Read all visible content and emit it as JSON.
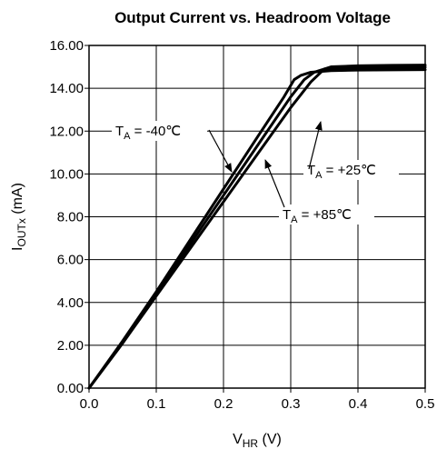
{
  "chart_data": {
    "type": "line",
    "title": "Output Current vs. Headroom Voltage",
    "xlabel": "V",
    "xlabel_sub": "HR",
    "xlabel_unit": "(V)",
    "ylabel": "I",
    "ylabel_sub": "OUTx",
    "ylabel_unit": "(mA)",
    "xlim": [
      0.0,
      0.5
    ],
    "ylim": [
      0.0,
      16.0
    ],
    "xticks": [
      0.0,
      0.1,
      0.2,
      0.3,
      0.4,
      0.5
    ],
    "xtick_labels": [
      "0.0",
      "0.1",
      "0.2",
      "0.3",
      "0.4",
      "0.5"
    ],
    "yticks": [
      0,
      2,
      4,
      6,
      8,
      10,
      12,
      14,
      16
    ],
    "ytick_labels": [
      "0.00",
      "2.00",
      "4.00",
      "6.00",
      "8.00",
      "10.00",
      "12.00",
      "14.00",
      "16.00"
    ],
    "grid": true,
    "legend": "none",
    "series": [
      {
        "name": "T_A = -40℃",
        "x": [
          0.0,
          0.05,
          0.1,
          0.15,
          0.2,
          0.25,
          0.29,
          0.305,
          0.315,
          0.33,
          0.36,
          0.4,
          0.45,
          0.5
        ],
        "y": [
          0.0,
          2.2,
          4.5,
          6.9,
          9.3,
          11.7,
          13.6,
          14.4,
          14.6,
          14.75,
          14.82,
          14.85,
          14.86,
          14.87
        ]
      },
      {
        "name": "T_A = +25℃",
        "x": [
          0.0,
          0.05,
          0.1,
          0.15,
          0.2,
          0.25,
          0.3,
          0.32,
          0.335,
          0.35,
          0.4,
          0.45,
          0.5
        ],
        "y": [
          0.0,
          2.1,
          4.4,
          6.7,
          9.0,
          11.3,
          13.6,
          14.4,
          14.75,
          14.9,
          14.95,
          14.97,
          14.98
        ]
      },
      {
        "name": "T_A = +85℃",
        "x": [
          0.0,
          0.05,
          0.1,
          0.15,
          0.2,
          0.25,
          0.3,
          0.33,
          0.35,
          0.36,
          0.4,
          0.45,
          0.5
        ],
        "y": [
          0.0,
          2.1,
          4.3,
          6.5,
          8.7,
          10.9,
          13.1,
          14.3,
          14.9,
          15.0,
          15.05,
          15.07,
          15.08
        ]
      }
    ],
    "annotations": [
      {
        "main": "T",
        "sub": "A",
        "value": " = -40℃"
      },
      {
        "main": "T",
        "sub": "A",
        "value": " = +25℃"
      },
      {
        "main": "T",
        "sub": "A",
        "value": " = +85℃"
      }
    ]
  }
}
